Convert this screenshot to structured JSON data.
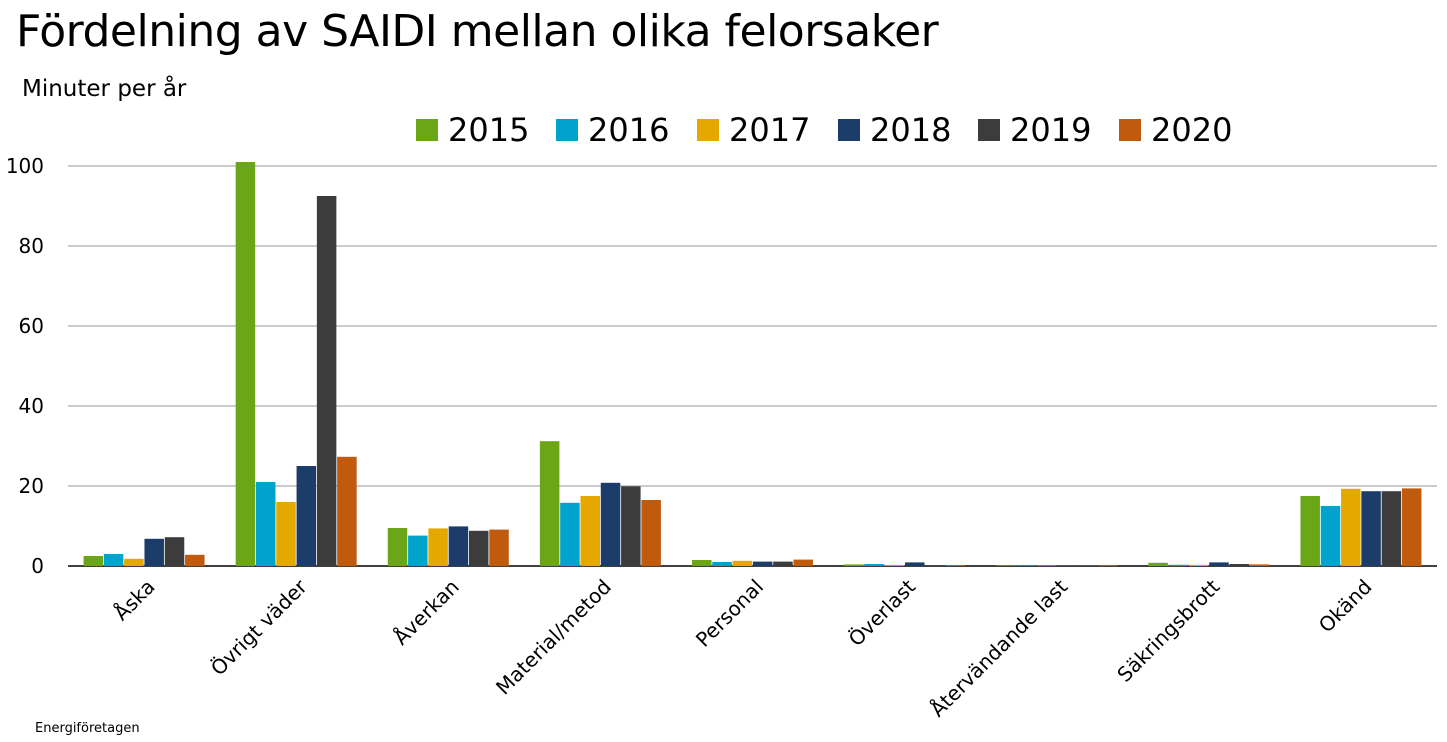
{
  "chart_data": {
    "type": "bar",
    "title": "Fördelning av SAIDI mellan olika felorsaker",
    "ylabel": "Minuter per år",
    "xlabel": "",
    "ylim": [
      0,
      100
    ],
    "yticks": [
      0,
      20,
      40,
      60,
      80,
      100
    ],
    "grid": true,
    "legend_position": "top",
    "categories": [
      "Åska",
      "Övrigt väder",
      "Åverkan",
      "Material/metod",
      "Personal",
      "Överlast",
      "Återvändande last",
      "Säkringsbrott",
      "Okänd"
    ],
    "series": [
      {
        "name": "2015",
        "color": "#6aa617",
        "values": [
          2.5,
          101,
          9.5,
          31.2,
          1.5,
          0.4,
          0.1,
          0.8,
          17.5
        ]
      },
      {
        "name": "2016",
        "color": "#00a3cc",
        "values": [
          3.0,
          21,
          7.6,
          15.8,
          1.0,
          0.5,
          0.1,
          0.3,
          15.0
        ]
      },
      {
        "name": "2017",
        "color": "#e5a800",
        "values": [
          1.8,
          16,
          9.4,
          17.5,
          1.3,
          0.2,
          0.1,
          0.3,
          19.3
        ]
      },
      {
        "name": "2018",
        "color": "#1c3d6a",
        "values": [
          6.8,
          25,
          9.9,
          20.8,
          1.1,
          0.9,
          0.1,
          0.9,
          18.7
        ]
      },
      {
        "name": "2019",
        "color": "#3c3c3c",
        "values": [
          7.2,
          92.5,
          8.8,
          19.9,
          1.1,
          0.2,
          0.1,
          0.5,
          18.7
        ]
      },
      {
        "name": "2020",
        "color": "#c05a0d",
        "values": [
          2.8,
          27.3,
          9.1,
          16.5,
          1.6,
          0.2,
          0.1,
          0.4,
          19.4
        ]
      }
    ]
  },
  "source": "Energiföretagen"
}
